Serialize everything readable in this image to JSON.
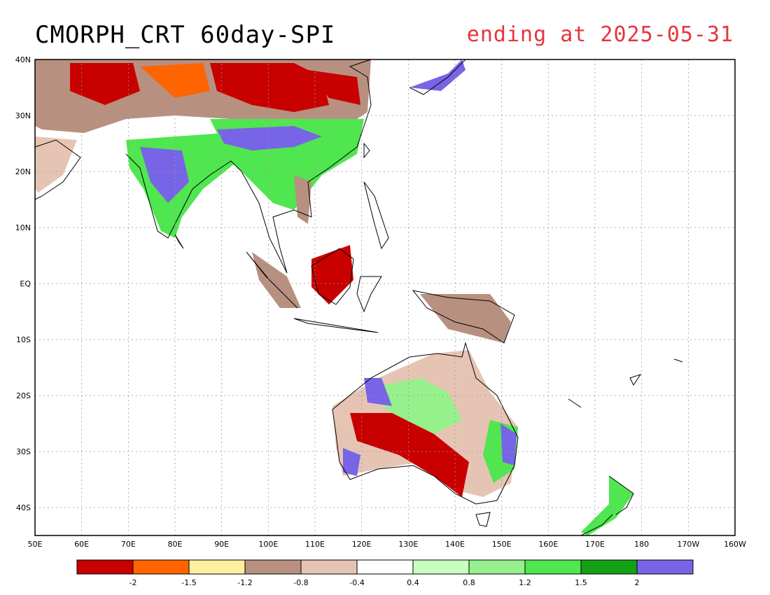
{
  "title": "CMORPH_CRT 60day-SPI",
  "subtitle": "ending at 2025-05-31",
  "colors": {
    "title": "#000000",
    "subtitle": "#e8343c",
    "coast": "#000000",
    "grid": "#999999"
  },
  "map": {
    "lat_labels": [
      "40N",
      "30N",
      "20N",
      "10N",
      "EQ",
      "10S",
      "20S",
      "30S",
      "40S"
    ],
    "lon_labels": [
      "50E",
      "60E",
      "70E",
      "80E",
      "90E",
      "100E",
      "110E",
      "120E",
      "130E",
      "140E",
      "150E",
      "160E",
      "170E",
      "180",
      "170W",
      "160W"
    ]
  },
  "legend": {
    "colors": [
      "#c80000",
      "#ff6400",
      "#fff0a0",
      "#b89080",
      "#e6c4b4",
      "#ffffff",
      "#c8ffc0",
      "#96f08c",
      "#50e650",
      "#14a014",
      "#7864e6"
    ],
    "labels": [
      "-2",
      "-1.5",
      "-1.2",
      "-0.8",
      "-0.4",
      "0.4",
      "0.8",
      "1.2",
      "1.5",
      "2"
    ]
  }
}
